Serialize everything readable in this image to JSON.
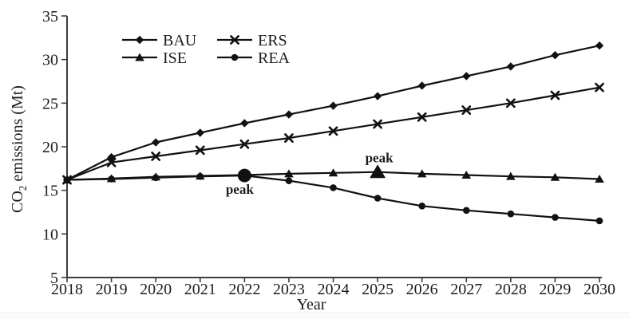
{
  "figure": {
    "background": "#ffffff",
    "line_color": "#111111",
    "axis_color": "#3d3d3d",
    "text_color": "#1c1c1c",
    "bottom_strip_color": "#fafbfb"
  },
  "chart_data": {
    "type": "line",
    "title": "",
    "xlabel": "Year",
    "ylabel": "CO2 emissions (Mt)",
    "ylabel_parts": {
      "prefix": "CO",
      "subscript": "2",
      "suffix": " emissions (Mt)"
    },
    "x": [
      2018,
      2019,
      2020,
      2021,
      2022,
      2023,
      2024,
      2025,
      2026,
      2027,
      2028,
      2029,
      2030
    ],
    "xlim": [
      2018,
      2030
    ],
    "ylim": [
      5,
      35
    ],
    "y_ticks": [
      5,
      10,
      15,
      20,
      25,
      30,
      35
    ],
    "grid": false,
    "legend_position": "top-left-inside",
    "series": [
      {
        "name": "BAU",
        "marker": "diamond",
        "values": [
          16.2,
          18.8,
          20.5,
          21.6,
          22.7,
          23.7,
          24.7,
          25.8,
          27.0,
          28.1,
          29.2,
          30.5,
          31.6
        ]
      },
      {
        "name": "ERS",
        "marker": "x",
        "values": [
          16.2,
          18.2,
          18.9,
          19.6,
          20.3,
          21.0,
          21.8,
          22.6,
          23.4,
          24.2,
          25.0,
          25.9,
          26.8
        ]
      },
      {
        "name": "ISE",
        "marker": "triangle",
        "values": [
          16.2,
          16.35,
          16.55,
          16.65,
          16.75,
          16.9,
          17.0,
          17.1,
          16.9,
          16.75,
          16.6,
          16.5,
          16.3
        ]
      },
      {
        "name": "REA",
        "marker": "circle",
        "values": [
          16.2,
          16.3,
          16.45,
          16.6,
          16.7,
          16.1,
          15.3,
          14.1,
          13.2,
          12.7,
          12.3,
          11.9,
          11.5
        ]
      }
    ],
    "annotations": [
      {
        "text": "peak",
        "series": "REA",
        "year": 2022,
        "placement": "below",
        "big_marker": true
      },
      {
        "text": "peak",
        "series": "ISE",
        "year": 2025,
        "placement": "above",
        "big_marker": true
      }
    ]
  }
}
